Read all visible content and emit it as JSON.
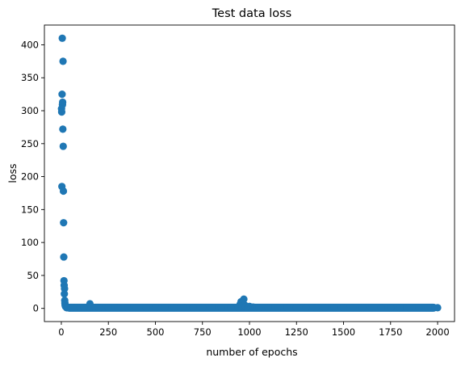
{
  "chart_data": {
    "type": "scatter",
    "title": "Test data loss",
    "xlabel": "number of epochs",
    "ylabel": "loss",
    "xlim": [
      -90,
      2090
    ],
    "ylim": [
      -20,
      430
    ],
    "xticks": [
      0,
      250,
      500,
      750,
      1000,
      1250,
      1500,
      1750,
      2000
    ],
    "yticks": [
      0,
      50,
      100,
      150,
      200,
      250,
      300,
      350,
      400
    ],
    "grid": false,
    "legend": "none",
    "marker_color": "#1f77b4",
    "series": [
      {
        "x": [
          1,
          2,
          3,
          4,
          5,
          6,
          7,
          8,
          9,
          10,
          11,
          12,
          13,
          14,
          15,
          16,
          17,
          18,
          19,
          20,
          22,
          25,
          28,
          30,
          35,
          40,
          50,
          60,
          80,
          100,
          120,
          150,
          152,
          160,
          180,
          200,
          250,
          300,
          350,
          400,
          450,
          500,
          550,
          600,
          650,
          700,
          750,
          800,
          850,
          900,
          940,
          950,
          955,
          960,
          965,
          970,
          975,
          980,
          990,
          1000,
          1010,
          1020,
          1030,
          1040,
          1050,
          1100,
          1150,
          1200,
          1250,
          1300,
          1350,
          1400,
          1450,
          1500,
          1550,
          1600,
          1650,
          1700,
          1750,
          1800,
          1850,
          1900,
          1950,
          2000
        ],
        "y": [
          303,
          298,
          185,
          325,
          410,
          309,
          313,
          272,
          375,
          246,
          178,
          130,
          78,
          42,
          35,
          22,
          30,
          12,
          8,
          5,
          3,
          2,
          1,
          1,
          1,
          1,
          1,
          1,
          1,
          1,
          1,
          1,
          7,
          2,
          1,
          1,
          1,
          1,
          1,
          1,
          1,
          1,
          1,
          1,
          1,
          1,
          1,
          1,
          1,
          1,
          1,
          6,
          10,
          3,
          8,
          14,
          5,
          3,
          2,
          3,
          2,
          2,
          1,
          1,
          1,
          1,
          1,
          1,
          1,
          1,
          1,
          1,
          1,
          1,
          1,
          1,
          1,
          1,
          1,
          1,
          1,
          1,
          1,
          1
        ]
      }
    ]
  }
}
